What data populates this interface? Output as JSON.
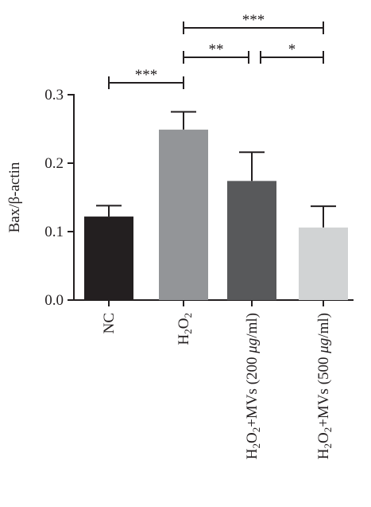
{
  "chart_data": {
    "type": "bar",
    "ylabel": "Bax/β-actin",
    "ylim": [
      0,
      0.3
    ],
    "yticks": [
      "0.0",
      "0.1",
      "0.2",
      "0.3"
    ],
    "categories": [
      "NC",
      "H2O2",
      "H2O2+MVs (200 μg/ml)",
      "H2O2+MVs (500 μg/ml)"
    ],
    "category_labels": [
      {
        "main": "NC"
      },
      {
        "main": "H",
        "sub1": "2",
        "mid": "O",
        "sub2": "2"
      },
      {
        "main": "H",
        "sub1": "2",
        "mid": "O",
        "sub2": "2",
        "rest": "+MVs (200 ",
        "unit_it": "μg",
        "tail": "/ml)"
      },
      {
        "main": "H",
        "sub1": "2",
        "mid": "O",
        "sub2": "2",
        "rest": "+MVs (500 ",
        "unit_it": "μg",
        "tail": "/ml)"
      }
    ],
    "values": [
      0.122,
      0.249,
      0.174,
      0.106
    ],
    "errors": [
      0.016,
      0.026,
      0.042,
      0.031
    ],
    "colors": [
      "#231f20",
      "#939598",
      "#58595b",
      "#d1d3d4"
    ],
    "significance": [
      {
        "from": 0,
        "to": 1,
        "label": "***"
      },
      {
        "from": 1,
        "to": 2,
        "label": "**"
      },
      {
        "from": 2,
        "to": 3,
        "label": "*"
      },
      {
        "from": 1,
        "to": 3,
        "label": "***"
      }
    ]
  }
}
